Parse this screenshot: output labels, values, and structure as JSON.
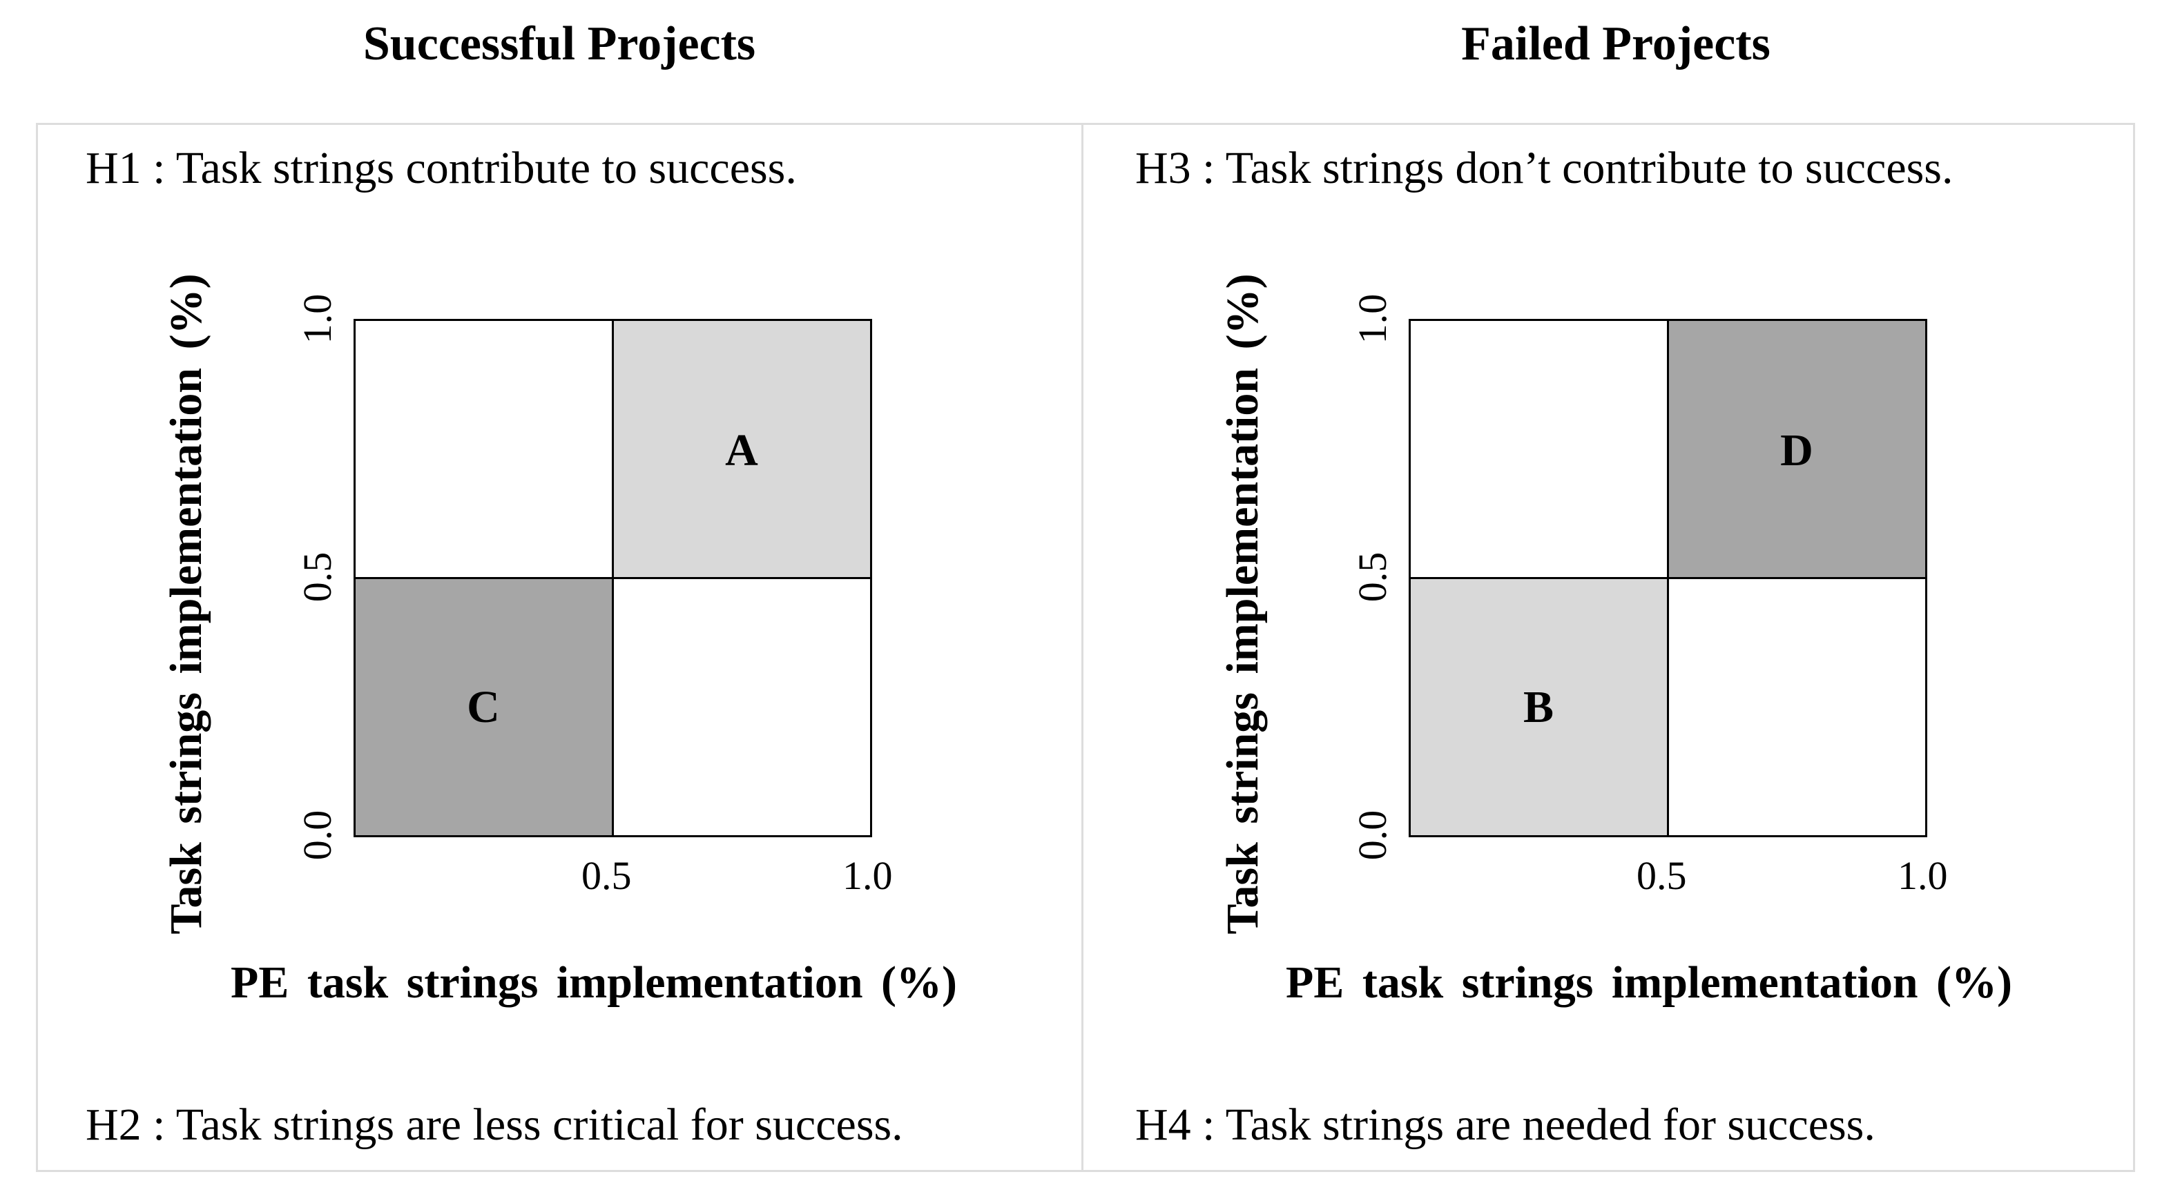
{
  "panels": {
    "successful": {
      "title": "Successful Projects",
      "top_hypothesis": "H1 : Task strings contribute to success.",
      "bottom_hypothesis": "H2 : Task strings are less critical for success.",
      "quadrants": {
        "top_right": {
          "label": "A",
          "fill": "#d9d9d9"
        },
        "bottom_left": {
          "label": "C",
          "fill": "#a6a6a6"
        },
        "top_left": {
          "label": "",
          "fill": "#ffffff"
        },
        "bottom_right": {
          "label": "",
          "fill": "#ffffff"
        }
      },
      "x_ticks": [
        "0.5",
        "1.0"
      ],
      "y_ticks": [
        "0.0",
        "0.5",
        "1.0"
      ],
      "xlabel": "PE task strings implementation (%)",
      "ylabel": "Task strings implementation (%)"
    },
    "failed": {
      "title": "Failed Projects",
      "top_hypothesis": "H3 : Task strings don’t contribute to success.",
      "bottom_hypothesis": "H4 : Task strings are needed for success.",
      "quadrants": {
        "top_right": {
          "label": "D",
          "fill": "#a6a6a6"
        },
        "bottom_left": {
          "label": "B",
          "fill": "#d9d9d9"
        },
        "top_left": {
          "label": "",
          "fill": "#ffffff"
        },
        "bottom_right": {
          "label": "",
          "fill": "#ffffff"
        }
      },
      "x_ticks": [
        "0.5",
        "1.0"
      ],
      "y_ticks": [
        "0.0",
        "0.5",
        "1.0"
      ],
      "xlabel": "PE task strings implementation (%)",
      "ylabel": "Task strings implementation (%)"
    }
  },
  "colors": {
    "light_gray": "#d9d9d9",
    "dark_gray": "#a6a6a6",
    "border": "#dddddd"
  }
}
